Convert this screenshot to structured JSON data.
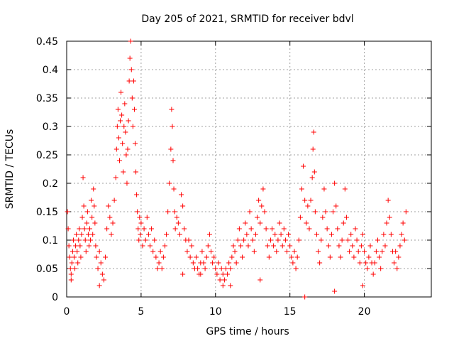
{
  "chart_data": {
    "type": "scatter",
    "title": "Day 205 of 2021, SRMTID for receiver bdvl",
    "xlabel": "GPS time / hours",
    "ylabel": "SRMTID / TECUs",
    "xlim": [
      0,
      24.5
    ],
    "ylim": [
      0,
      0.45
    ],
    "xticks": [
      0,
      5,
      10,
      15,
      20
    ],
    "xtick_labels": [
      "0",
      "5",
      "10",
      "15",
      "20"
    ],
    "yticks": [
      0,
      0.05,
      0.1,
      0.15,
      0.2,
      0.25,
      0.3,
      0.35,
      0.4,
      0.45
    ],
    "ytick_labels": [
      "0",
      "0.05",
      "0.1",
      "0.15",
      "0.2",
      "0.25",
      "0.3",
      "0.35",
      "0.4",
      "0.45"
    ],
    "grid": true,
    "marker": "plus",
    "color": "#ff0000",
    "series": [
      {
        "name": "SRMTID",
        "points": [
          [
            0.05,
            0.15
          ],
          [
            0.1,
            0.12
          ],
          [
            0.15,
            0.09
          ],
          [
            0.2,
            0.07
          ],
          [
            0.25,
            0.05
          ],
          [
            0.3,
            0.04
          ],
          [
            0.35,
            0.06
          ],
          [
            0.4,
            0.08
          ],
          [
            0.45,
            0.1
          ],
          [
            0.5,
            0.07
          ],
          [
            0.55,
            0.05
          ],
          [
            0.6,
            0.09
          ],
          [
            0.65,
            0.11
          ],
          [
            0.7,
            0.08
          ],
          [
            0.75,
            0.06
          ],
          [
            0.8,
            0.1
          ],
          [
            0.85,
            0.12
          ],
          [
            0.9,
            0.09
          ],
          [
            0.95,
            0.07
          ],
          [
            1.0,
            0.11
          ],
          [
            1.05,
            0.14
          ],
          [
            1.1,
            0.21
          ],
          [
            1.15,
            0.16
          ],
          [
            1.2,
            0.12
          ],
          [
            1.25,
            0.1
          ],
          [
            1.3,
            0.08
          ],
          [
            1.35,
            0.13
          ],
          [
            1.4,
            0.15
          ],
          [
            1.45,
            0.11
          ],
          [
            1.5,
            0.09
          ],
          [
            1.55,
            0.12
          ],
          [
            1.6,
            0.1
          ],
          [
            1.65,
            0.17
          ],
          [
            1.7,
            0.14
          ],
          [
            1.75,
            0.11
          ],
          [
            1.8,
            0.19
          ],
          [
            1.85,
            0.16
          ],
          [
            1.9,
            0.13
          ],
          [
            1.95,
            0.09
          ],
          [
            2.0,
            0.07
          ],
          [
            2.1,
            0.05
          ],
          [
            2.2,
            0.08
          ],
          [
            2.3,
            0.06
          ],
          [
            2.4,
            0.04
          ],
          [
            2.5,
            0.03
          ],
          [
            2.6,
            0.07
          ],
          [
            2.7,
            0.12
          ],
          [
            2.8,
            0.16
          ],
          [
            2.9,
            0.14
          ],
          [
            3.0,
            0.11
          ],
          [
            3.1,
            0.13
          ],
          [
            3.2,
            0.17
          ],
          [
            3.3,
            0.21
          ],
          [
            3.35,
            0.26
          ],
          [
            3.4,
            0.3
          ],
          [
            3.45,
            0.33
          ],
          [
            3.5,
            0.28
          ],
          [
            3.55,
            0.24
          ],
          [
            3.6,
            0.31
          ],
          [
            3.65,
            0.36
          ],
          [
            3.7,
            0.32
          ],
          [
            3.75,
            0.27
          ],
          [
            3.8,
            0.22
          ],
          [
            3.85,
            0.3
          ],
          [
            3.9,
            0.34
          ],
          [
            3.95,
            0.29
          ],
          [
            4.0,
            0.25
          ],
          [
            4.05,
            0.2
          ],
          [
            4.1,
            0.26
          ],
          [
            4.15,
            0.31
          ],
          [
            4.2,
            0.38
          ],
          [
            4.25,
            0.42
          ],
          [
            4.3,
            0.45
          ],
          [
            4.35,
            0.4
          ],
          [
            4.4,
            0.35
          ],
          [
            4.45,
            0.3
          ],
          [
            4.5,
            0.38
          ],
          [
            4.55,
            0.33
          ],
          [
            4.6,
            0.27
          ],
          [
            4.65,
            0.22
          ],
          [
            4.7,
            0.18
          ],
          [
            4.75,
            0.15
          ],
          [
            4.8,
            0.12
          ],
          [
            4.85,
            0.1
          ],
          [
            4.9,
            0.14
          ],
          [
            4.95,
            0.11
          ],
          [
            5.0,
            0.13
          ],
          [
            5.1,
            0.09
          ],
          [
            5.2,
            0.12
          ],
          [
            5.3,
            0.1
          ],
          [
            5.4,
            0.14
          ],
          [
            5.5,
            0.11
          ],
          [
            5.6,
            0.09
          ],
          [
            5.7,
            0.12
          ],
          [
            5.8,
            0.08
          ],
          [
            5.9,
            0.1
          ],
          [
            6.0,
            0.07
          ],
          [
            6.1,
            0.05
          ],
          [
            6.2,
            0.06
          ],
          [
            6.3,
            0.08
          ],
          [
            6.4,
            0.05
          ],
          [
            6.5,
            0.07
          ],
          [
            6.6,
            0.09
          ],
          [
            6.7,
            0.11
          ],
          [
            6.8,
            0.15
          ],
          [
            6.9,
            0.2
          ],
          [
            7.0,
            0.26
          ],
          [
            7.05,
            0.33
          ],
          [
            7.1,
            0.3
          ],
          [
            7.15,
            0.24
          ],
          [
            7.2,
            0.19
          ],
          [
            7.25,
            0.15
          ],
          [
            7.3,
            0.12
          ],
          [
            7.4,
            0.14
          ],
          [
            7.5,
            0.13
          ],
          [
            7.6,
            0.11
          ],
          [
            7.7,
            0.18
          ],
          [
            7.8,
            0.16
          ],
          [
            7.9,
            0.12
          ],
          [
            8.0,
            0.1
          ],
          [
            8.1,
            0.08
          ],
          [
            8.2,
            0.1
          ],
          [
            8.3,
            0.07
          ],
          [
            8.4,
            0.09
          ],
          [
            8.5,
            0.06
          ],
          [
            8.6,
            0.05
          ],
          [
            8.7,
            0.07
          ],
          [
            8.8,
            0.05
          ],
          [
            8.9,
            0.04
          ],
          [
            9.0,
            0.06
          ],
          [
            9.1,
            0.08
          ],
          [
            9.2,
            0.06
          ],
          [
            9.3,
            0.05
          ],
          [
            9.4,
            0.07
          ],
          [
            9.5,
            0.09
          ],
          [
            9.6,
            0.11
          ],
          [
            9.7,
            0.08
          ],
          [
            9.8,
            0.06
          ],
          [
            9.9,
            0.07
          ],
          [
            10.0,
            0.05
          ],
          [
            10.1,
            0.04
          ],
          [
            10.2,
            0.06
          ],
          [
            10.3,
            0.03
          ],
          [
            10.4,
            0.05
          ],
          [
            10.5,
            0.04
          ],
          [
            10.6,
            0.03
          ],
          [
            10.7,
            0.05
          ],
          [
            10.8,
            0.04
          ],
          [
            10.9,
            0.06
          ],
          [
            11.0,
            0.05
          ],
          [
            11.1,
            0.07
          ],
          [
            11.2,
            0.09
          ],
          [
            11.3,
            0.08
          ],
          [
            11.4,
            0.06
          ],
          [
            11.5,
            0.1
          ],
          [
            11.6,
            0.12
          ],
          [
            11.7,
            0.09
          ],
          [
            11.8,
            0.07
          ],
          [
            11.9,
            0.1
          ],
          [
            12.0,
            0.13
          ],
          [
            12.1,
            0.11
          ],
          [
            12.2,
            0.09
          ],
          [
            12.3,
            0.15
          ],
          [
            12.4,
            0.12
          ],
          [
            12.5,
            0.1
          ],
          [
            12.6,
            0.08
          ],
          [
            12.7,
            0.11
          ],
          [
            12.8,
            0.14
          ],
          [
            12.9,
            0.17
          ],
          [
            13.0,
            0.13
          ],
          [
            13.1,
            0.16
          ],
          [
            13.2,
            0.19
          ],
          [
            13.3,
            0.15
          ],
          [
            13.4,
            0.12
          ],
          [
            13.5,
            0.09
          ],
          [
            13.6,
            0.07
          ],
          [
            13.7,
            0.1
          ],
          [
            13.8,
            0.12
          ],
          [
            13.9,
            0.09
          ],
          [
            14.0,
            0.11
          ],
          [
            14.1,
            0.08
          ],
          [
            14.2,
            0.1
          ],
          [
            14.3,
            0.13
          ],
          [
            14.4,
            0.11
          ],
          [
            14.5,
            0.09
          ],
          [
            14.6,
            0.12
          ],
          [
            14.7,
            0.1
          ],
          [
            14.8,
            0.08
          ],
          [
            14.9,
            0.11
          ],
          [
            15.0,
            0.09
          ],
          [
            15.1,
            0.07
          ],
          [
            15.2,
            0.06
          ],
          [
            15.3,
            0.08
          ],
          [
            15.4,
            0.05
          ],
          [
            15.5,
            0.07
          ],
          [
            15.6,
            0.1
          ],
          [
            15.7,
            0.14
          ],
          [
            15.8,
            0.19
          ],
          [
            15.9,
            0.23
          ],
          [
            16.0,
            0.17
          ],
          [
            16.1,
            0.13
          ],
          [
            16.2,
            0.16
          ],
          [
            16.3,
            0.12
          ],
          [
            16.4,
            0.17
          ],
          [
            16.5,
            0.21
          ],
          [
            16.55,
            0.26
          ],
          [
            16.6,
            0.29
          ],
          [
            16.65,
            0.22
          ],
          [
            16.7,
            0.15
          ],
          [
            16.8,
            0.11
          ],
          [
            16.9,
            0.08
          ],
          [
            17.0,
            0.06
          ],
          [
            17.1,
            0.1
          ],
          [
            17.2,
            0.14
          ],
          [
            17.3,
            0.19
          ],
          [
            17.4,
            0.15
          ],
          [
            17.5,
            0.12
          ],
          [
            17.6,
            0.09
          ],
          [
            17.7,
            0.07
          ],
          [
            17.8,
            0.11
          ],
          [
            17.9,
            0.15
          ],
          [
            18.0,
            0.2
          ],
          [
            18.1,
            0.16
          ],
          [
            18.2,
            0.12
          ],
          [
            18.3,
            0.09
          ],
          [
            18.4,
            0.07
          ],
          [
            18.5,
            0.1
          ],
          [
            18.6,
            0.13
          ],
          [
            18.7,
            0.19
          ],
          [
            18.8,
            0.14
          ],
          [
            18.9,
            0.1
          ],
          [
            19.0,
            0.08
          ],
          [
            19.1,
            0.11
          ],
          [
            19.2,
            0.09
          ],
          [
            19.3,
            0.07
          ],
          [
            19.4,
            0.12
          ],
          [
            19.5,
            0.1
          ],
          [
            19.6,
            0.08
          ],
          [
            19.7,
            0.06
          ],
          [
            19.8,
            0.09
          ],
          [
            19.9,
            0.11
          ],
          [
            20.0,
            0.08
          ],
          [
            20.1,
            0.06
          ],
          [
            20.2,
            0.05
          ],
          [
            20.3,
            0.07
          ],
          [
            20.4,
            0.09
          ],
          [
            20.5,
            0.06
          ],
          [
            20.6,
            0.04
          ],
          [
            20.7,
            0.06
          ],
          [
            20.8,
            0.08
          ],
          [
            20.9,
            0.1
          ],
          [
            21.0,
            0.07
          ],
          [
            21.1,
            0.05
          ],
          [
            21.2,
            0.08
          ],
          [
            21.3,
            0.11
          ],
          [
            21.4,
            0.09
          ],
          [
            21.5,
            0.13
          ],
          [
            21.6,
            0.17
          ],
          [
            21.7,
            0.14
          ],
          [
            21.8,
            0.11
          ],
          [
            21.9,
            0.08
          ],
          [
            22.0,
            0.06
          ],
          [
            22.1,
            0.08
          ],
          [
            22.2,
            0.05
          ],
          [
            22.3,
            0.07
          ],
          [
            22.4,
            0.09
          ],
          [
            22.5,
            0.11
          ],
          [
            22.6,
            0.13
          ],
          [
            22.7,
            0.1
          ],
          [
            22.8,
            0.15
          ],
          [
            0.3,
            0.03
          ],
          [
            2.2,
            0.02
          ],
          [
            9.0,
            0.04
          ],
          [
            10.5,
            0.02
          ],
          [
            16.0,
            0.0
          ],
          [
            18.0,
            0.01
          ],
          [
            19.9,
            0.02
          ],
          [
            13.0,
            0.03
          ],
          [
            7.8,
            0.04
          ],
          [
            11.0,
            0.02
          ]
        ]
      }
    ]
  }
}
